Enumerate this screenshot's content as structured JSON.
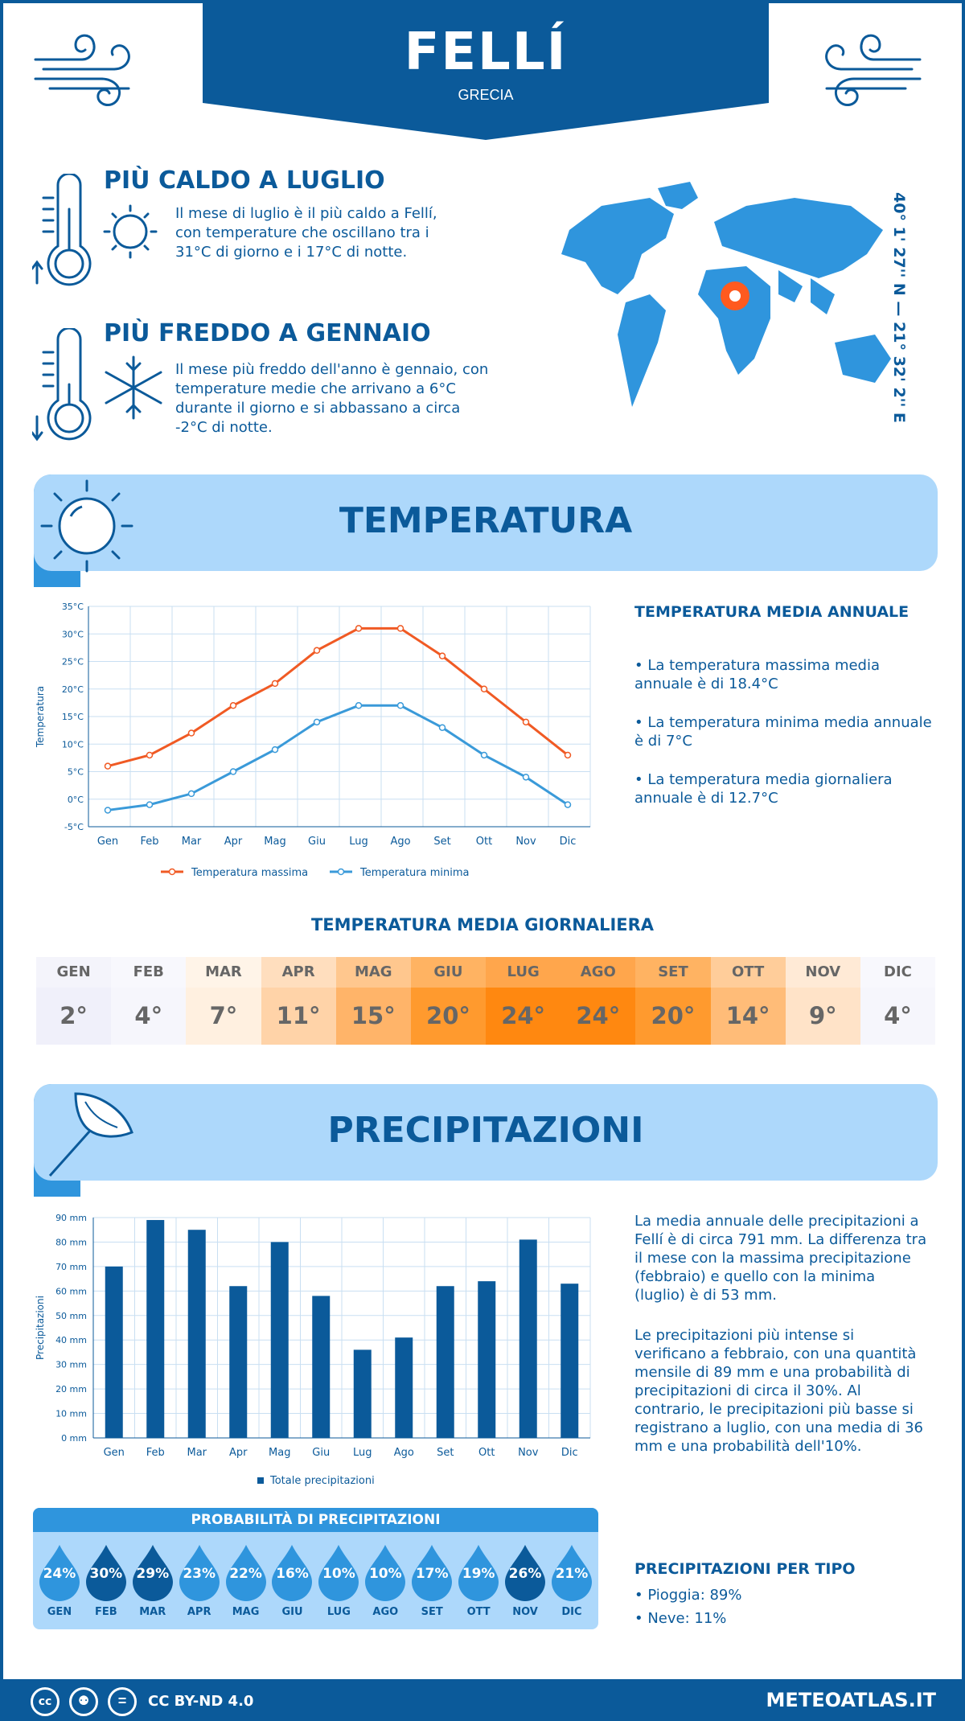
{
  "header": {
    "title": "FELLÍ",
    "subtitle": "GRECIA"
  },
  "coordinates": "40° 1' 27'' N — 21° 32' 2'' E",
  "warmest": {
    "title": "PIÙ CALDO A LUGLIO",
    "text": "Il mese di luglio è il più caldo a Fellí, con temperature che oscillano tra i 31°C di giorno e i 17°C di notte."
  },
  "coldest": {
    "title": "PIÙ FREDDO A GENNAIO",
    "text": "Il mese più freddo dell'anno è gennaio, con temperature medie che arrivano a 6°C durante il giorno e si abbassano a circa -2°C di notte."
  },
  "temperature_section": {
    "title": "TEMPERATURA",
    "annual_title": "TEMPERATURA MEDIA ANNUALE",
    "bullets": [
      "• La temperatura massima media annuale è di 18.4°C",
      "• La temperatura minima media annuale è di 7°C",
      "• La temperatura media giornaliera annuale è di 12.7°C"
    ],
    "daily_title": "TEMPERATURA MEDIA GIORNALIERA",
    "daily": [
      {
        "month": "GEN",
        "value": "2°",
        "bg": "#f0f0fa"
      },
      {
        "month": "FEB",
        "value": "4°",
        "bg": "#f6f6fc"
      },
      {
        "month": "MAR",
        "value": "7°",
        "bg": "#fff0e0"
      },
      {
        "month": "APR",
        "value": "11°",
        "bg": "#ffd3a8"
      },
      {
        "month": "MAG",
        "value": "15°",
        "bg": "#ffb469"
      },
      {
        "month": "GIU",
        "value": "20°",
        "bg": "#ff9a2e"
      },
      {
        "month": "LUG",
        "value": "24°",
        "bg": "#ff8810"
      },
      {
        "month": "AGO",
        "value": "24°",
        "bg": "#ff8810"
      },
      {
        "month": "SET",
        "value": "20°",
        "bg": "#ff9a2e"
      },
      {
        "month": "OTT",
        "value": "14°",
        "bg": "#ffbc78"
      },
      {
        "month": "NOV",
        "value": "9°",
        "bg": "#ffe3c8"
      },
      {
        "month": "DIC",
        "value": "4°",
        "bg": "#f6f6fc"
      }
    ]
  },
  "precipitation_section": {
    "title": "PRECIPITAZIONI",
    "text1": "La media annuale delle precipitazioni a Fellí è di circa 791 mm. La differenza tra il mese con la massima precipitazione (febbraio) e quello con la minima (luglio) è di 53 mm.",
    "text2": "Le precipitazioni più intense si verificano a febbraio, con una quantità mensile di 89 mm e una probabilità di precipitazioni di circa il 30%. Al contrario, le precipitazioni più basse si registrano a luglio, con una media di 36 mm e una probabilità dell'10%.",
    "probability_title": "PROBABILITÀ DI PRECIPITAZIONI",
    "probability": [
      {
        "month": "GEN",
        "value": "24%",
        "color": "#2f95dd"
      },
      {
        "month": "FEB",
        "value": "30%",
        "color": "#0b5a9a"
      },
      {
        "month": "MAR",
        "value": "29%",
        "color": "#0b5a9a"
      },
      {
        "month": "APR",
        "value": "23%",
        "color": "#2f95dd"
      },
      {
        "month": "MAG",
        "value": "22%",
        "color": "#2f95dd"
      },
      {
        "month": "GIU",
        "value": "16%",
        "color": "#2f95dd"
      },
      {
        "month": "LUG",
        "value": "10%",
        "color": "#2f95dd"
      },
      {
        "month": "AGO",
        "value": "10%",
        "color": "#2f95dd"
      },
      {
        "month": "SET",
        "value": "17%",
        "color": "#2f95dd"
      },
      {
        "month": "OTT",
        "value": "19%",
        "color": "#2f95dd"
      },
      {
        "month": "NOV",
        "value": "26%",
        "color": "#0b5a9a"
      },
      {
        "month": "DIC",
        "value": "21%",
        "color": "#2f95dd"
      }
    ],
    "type_title": "PRECIPITAZIONI PER TIPO",
    "types": [
      "• Pioggia: 89%",
      "• Neve: 11%"
    ]
  },
  "footer": {
    "license": "CC BY-ND 4.0",
    "site": "METEOATLAS.IT"
  },
  "colors": {
    "dark_blue": "#0b5a9a",
    "mid_blue": "#2f95dd",
    "light_blue": "#add8fb",
    "max_line": "#f05a24",
    "min_line": "#3a9ad9"
  },
  "chart_data": [
    {
      "type": "line",
      "categories": [
        "Gen",
        "Feb",
        "Mar",
        "Apr",
        "Mag",
        "Giu",
        "Lug",
        "Ago",
        "Set",
        "Ott",
        "Nov",
        "Dic"
      ],
      "series": [
        {
          "name": "Temperatura massima",
          "values": [
            6,
            8,
            12,
            17,
            21,
            27,
            31,
            31,
            26,
            20,
            14,
            8
          ]
        },
        {
          "name": "Temperatura minima",
          "values": [
            -2,
            -1,
            1,
            5,
            9,
            14,
            17,
            17,
            13,
            8,
            4,
            -1
          ]
        }
      ],
      "ylabel": "Temperatura",
      "yticks": [
        "-5°C",
        "0°C",
        "5°C",
        "10°C",
        "15°C",
        "20°C",
        "25°C",
        "30°C",
        "35°C"
      ],
      "ylim": [
        -5,
        35
      ],
      "grid": true,
      "legend": "bottom"
    },
    {
      "type": "bar",
      "categories": [
        "Gen",
        "Feb",
        "Mar",
        "Apr",
        "Mag",
        "Giu",
        "Lug",
        "Ago",
        "Set",
        "Ott",
        "Nov",
        "Dic"
      ],
      "series": [
        {
          "name": "Totale precipitazioni",
          "values": [
            70,
            89,
            85,
            62,
            80,
            58,
            36,
            41,
            62,
            64,
            81,
            63
          ]
        }
      ],
      "ylabel": "Precipitazioni",
      "yticks": [
        "0 mm",
        "10 mm",
        "20 mm",
        "30 mm",
        "40 mm",
        "50 mm",
        "60 mm",
        "70 mm",
        "80 mm",
        "90 mm"
      ],
      "ylim": [
        0,
        90
      ],
      "grid": true,
      "legend": "bottom"
    }
  ]
}
